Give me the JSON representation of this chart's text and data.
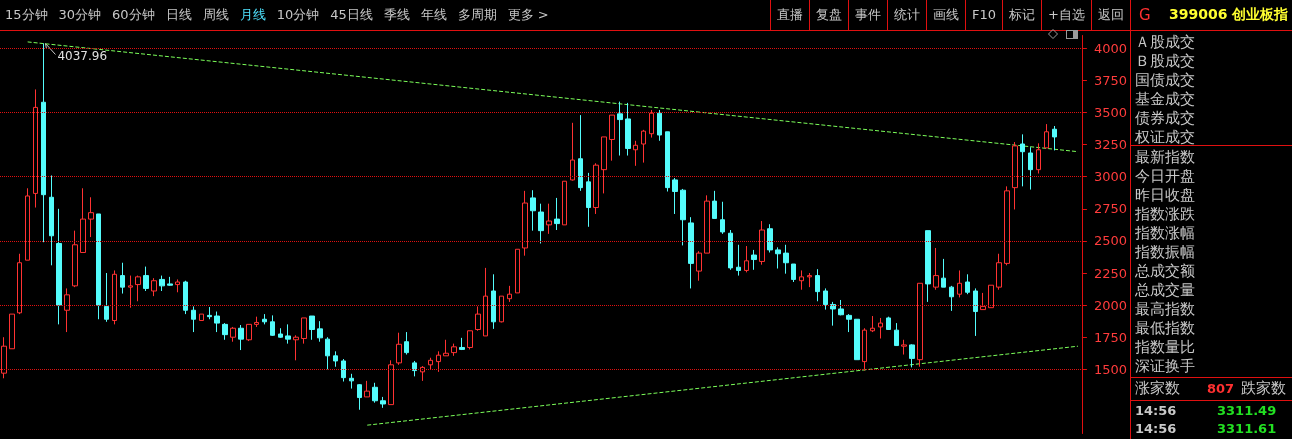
{
  "chart_data": {
    "type": "candlestick",
    "title": "399006 创业板指",
    "categories": [
      null,
      null,
      null,
      null,
      null,
      null,
      null,
      null,
      null,
      null,
      null,
      null,
      null,
      null,
      null,
      null,
      null,
      null,
      null,
      null,
      null,
      null,
      null,
      null,
      null,
      null,
      null,
      null,
      null,
      null,
      null,
      null,
      null,
      null,
      null,
      null,
      null,
      null,
      null,
      null,
      null,
      null,
      null,
      null,
      null,
      null,
      null,
      null,
      null,
      null,
      null,
      null,
      null,
      null,
      null,
      null,
      null,
      null,
      null,
      null,
      null,
      null,
      null,
      null,
      null,
      null,
      null,
      null,
      null,
      null,
      null,
      null,
      null,
      null,
      null,
      null,
      null,
      null,
      null,
      null,
      null,
      null,
      null,
      null,
      null,
      null,
      null,
      null,
      null,
      null,
      null,
      null,
      null,
      null,
      null,
      null,
      null,
      null,
      null,
      null,
      null,
      null,
      null,
      null,
      null,
      null,
      null,
      null,
      null,
      null,
      null,
      null,
      null,
      null,
      null,
      null,
      null,
      null,
      null,
      null,
      null,
      null,
      null,
      null,
      null,
      null,
      null,
      null,
      null,
      null,
      null,
      null,
      null,
      null,
      null,
      null,
      null
    ],
    "ohlc": [
      [
        1470,
        1750,
        1430,
        1680
      ],
      [
        1660,
        1930,
        1660,
        1930
      ],
      [
        1940,
        2400,
        1930,
        2330
      ],
      [
        2350,
        2910,
        2350,
        2850
      ],
      [
        2870,
        3680,
        2760,
        3540
      ],
      [
        3580,
        4037.96,
        2490,
        2860
      ],
      [
        2840,
        3010,
        2310,
        2540
      ],
      [
        2480,
        2750,
        1850,
        2000
      ],
      [
        1960,
        2130,
        1790,
        2080
      ],
      [
        2150,
        2580,
        2140,
        2470
      ],
      [
        2410,
        2910,
        2410,
        2670
      ],
      [
        2670,
        2840,
        2530,
        2720
      ],
      [
        2710,
        2710,
        1890,
        2000
      ],
      [
        1990,
        2250,
        1870,
        1890
      ],
      [
        1880,
        2270,
        1850,
        2240
      ],
      [
        2230,
        2330,
        2090,
        2140
      ],
      [
        2140,
        2230,
        1980,
        2150
      ],
      [
        2160,
        2230,
        2030,
        2220
      ],
      [
        2230,
        2300,
        2110,
        2130
      ],
      [
        2110,
        2210,
        2070,
        2190
      ],
      [
        2200,
        2230,
        2110,
        2150
      ],
      [
        2165,
        2220,
        2150,
        2155
      ],
      [
        2160,
        2200,
        2100,
        2180
      ],
      [
        2180,
        2190,
        1930,
        1960
      ],
      [
        1960,
        1990,
        1790,
        1890
      ],
      [
        1880,
        1930,
        1880,
        1930
      ],
      [
        1920,
        1985,
        1890,
        1910
      ],
      [
        1915,
        1950,
        1790,
        1860
      ],
      [
        1850,
        1860,
        1730,
        1770
      ],
      [
        1750,
        1830,
        1715,
        1820
      ],
      [
        1820,
        1845,
        1650,
        1735
      ],
      [
        1730,
        1850,
        1720,
        1850
      ],
      [
        1850,
        1910,
        1830,
        1865
      ],
      [
        1890,
        1930,
        1850,
        1870
      ],
      [
        1870,
        1920,
        1760,
        1765
      ],
      [
        1775,
        1820,
        1745,
        1750
      ],
      [
        1760,
        1850,
        1700,
        1735
      ],
      [
        1730,
        1765,
        1570,
        1750
      ],
      [
        1740,
        1900,
        1700,
        1900
      ],
      [
        1915,
        1915,
        1730,
        1810
      ],
      [
        1815,
        1875,
        1715,
        1745
      ],
      [
        1735,
        1750,
        1500,
        1605
      ],
      [
        1605,
        1640,
        1520,
        1565
      ],
      [
        1565,
        1580,
        1405,
        1435
      ],
      [
        1430,
        1465,
        1350,
        1410
      ],
      [
        1380,
        1385,
        1185,
        1280
      ],
      [
        1285,
        1410,
        1285,
        1330
      ],
      [
        1360,
        1395,
        1240,
        1255
      ],
      [
        1255,
        1285,
        1200,
        1230
      ],
      [
        1225,
        1570,
        1225,
        1535
      ],
      [
        1550,
        1785,
        1535,
        1695
      ],
      [
        1715,
        1790,
        1615,
        1630
      ],
      [
        1550,
        1565,
        1445,
        1490
      ],
      [
        1480,
        1525,
        1410,
        1515
      ],
      [
        1535,
        1590,
        1495,
        1570
      ],
      [
        1560,
        1640,
        1480,
        1610
      ],
      [
        1605,
        1730,
        1605,
        1625
      ],
      [
        1630,
        1700,
        1605,
        1675
      ],
      [
        1670,
        1745,
        1650,
        1655
      ],
      [
        1670,
        1800,
        1655,
        1800
      ],
      [
        1810,
        1990,
        1800,
        1930
      ],
      [
        1760,
        2290,
        1760,
        2070
      ],
      [
        2110,
        2240,
        1815,
        1870
      ],
      [
        1870,
        2070,
        1865,
        2070
      ],
      [
        2050,
        2150,
        2025,
        2085
      ],
      [
        2095,
        2435,
        2095,
        2435
      ],
      [
        2445,
        2890,
        2385,
        2795
      ],
      [
        2835,
        2895,
        2580,
        2735
      ],
      [
        2725,
        2790,
        2480,
        2580
      ],
      [
        2625,
        2790,
        2555,
        2655
      ],
      [
        2670,
        2835,
        2585,
        2635
      ],
      [
        2625,
        2965,
        2625,
        2965
      ],
      [
        2975,
        3420,
        2970,
        3130
      ],
      [
        3140,
        3480,
        2890,
        2915
      ],
      [
        2960,
        3030,
        2610,
        2760
      ],
      [
        2760,
        3105,
        2710,
        3090
      ],
      [
        3055,
        3310,
        2870,
        3310
      ],
      [
        3290,
        3480,
        3125,
        3480
      ],
      [
        3490,
        3585,
        3165,
        3445
      ],
      [
        3450,
        3575,
        3165,
        3220
      ],
      [
        3210,
        3280,
        3085,
        3245
      ],
      [
        3255,
        3365,
        3110,
        3355
      ],
      [
        3335,
        3520,
        3305,
        3495
      ],
      [
        3495,
        3520,
        3280,
        3325
      ],
      [
        3350,
        3350,
        2885,
        2915
      ],
      [
        2975,
        2990,
        2710,
        2885
      ],
      [
        2895,
        2905,
        2465,
        2665
      ],
      [
        2640,
        2685,
        2130,
        2325
      ],
      [
        2265,
        2420,
        2190,
        2405
      ],
      [
        2405,
        2855,
        2405,
        2810
      ],
      [
        2810,
        2890,
        2675,
        2675
      ],
      [
        2665,
        2805,
        2555,
        2570
      ],
      [
        2560,
        2585,
        2275,
        2290
      ],
      [
        2295,
        2470,
        2230,
        2270
      ],
      [
        2270,
        2460,
        2255,
        2345
      ],
      [
        2390,
        2430,
        2275,
        2355
      ],
      [
        2340,
        2655,
        2315,
        2585
      ],
      [
        2595,
        2630,
        2410,
        2430
      ],
      [
        2430,
        2450,
        2285,
        2400
      ],
      [
        2405,
        2470,
        2245,
        2330
      ],
      [
        2320,
        2320,
        2180,
        2200
      ],
      [
        2190,
        2270,
        2120,
        2220
      ],
      [
        2220,
        2250,
        2140,
        2230
      ],
      [
        2230,
        2280,
        2030,
        2105
      ],
      [
        2110,
        2130,
        1965,
        2005
      ],
      [
        2005,
        2025,
        1840,
        1970
      ],
      [
        1970,
        2040,
        1920,
        1925
      ],
      [
        1920,
        1930,
        1790,
        1890
      ],
      [
        1890,
        1890,
        1575,
        1575
      ],
      [
        1560,
        1820,
        1490,
        1805
      ],
      [
        1800,
        1915,
        1790,
        1820
      ],
      [
        1830,
        1900,
        1740,
        1860
      ],
      [
        1900,
        1910,
        1810,
        1810
      ],
      [
        1805,
        1860,
        1685,
        1685
      ],
      [
        1680,
        1730,
        1615,
        1690
      ],
      [
        1690,
        1695,
        1515,
        1585
      ],
      [
        1575,
        2170,
        1520,
        2170
      ],
      [
        2580,
        2580,
        2025,
        2165
      ],
      [
        2140,
        2445,
        2120,
        2230
      ],
      [
        2210,
        2360,
        2140,
        2140
      ],
      [
        2140,
        2150,
        1955,
        2065
      ],
      [
        2085,
        2270,
        2060,
        2170
      ],
      [
        2180,
        2240,
        2085,
        2100
      ],
      [
        2110,
        2130,
        1760,
        1950
      ],
      [
        1965,
        2095,
        1965,
        1990
      ],
      [
        1980,
        2155,
        1980,
        2155
      ],
      [
        2140,
        2400,
        2120,
        2330
      ],
      [
        2325,
        2925,
        2310,
        2890
      ],
      [
        2915,
        3270,
        2745,
        3240
      ],
      [
        3255,
        3330,
        2925,
        3195
      ],
      [
        3185,
        3230,
        2900,
        3055
      ],
      [
        3055,
        3260,
        3025,
        3210
      ],
      [
        3225,
        3410,
        3225,
        3350
      ],
      [
        3370,
        3395,
        3205,
        3310
      ],
      null,
      null,
      null
    ],
    "colors": [
      "#ff3232",
      "#ff3232",
      "#ff3232",
      "#ff3232",
      "#ff3232",
      "#54fcfc",
      "#54fcfc",
      "#54fcfc",
      "#ff3232",
      "#ff3232",
      "#ff3232",
      "#ff3232",
      "#54fcfc",
      "#54fcfc",
      "#ff3232",
      "#54fcfc",
      "#ff3232",
      "#ff3232",
      "#54fcfc",
      "#ff3232",
      "#54fcfc",
      "#54fcfc",
      "#ff3232",
      "#54fcfc",
      "#54fcfc",
      "#ff3232",
      "#54fcfc",
      "#54fcfc",
      "#54fcfc",
      "#ff3232",
      "#54fcfc",
      "#ff3232",
      "#ff3232",
      "#54fcfc",
      "#54fcfc",
      "#54fcfc",
      "#54fcfc",
      "#ff3232",
      "#ff3232",
      "#54fcfc",
      "#54fcfc",
      "#54fcfc",
      "#54fcfc",
      "#54fcfc",
      "#54fcfc",
      "#54fcfc",
      "#ff3232",
      "#54fcfc",
      "#54fcfc",
      "#ff3232",
      "#ff3232",
      "#54fcfc",
      "#54fcfc",
      "#ff3232",
      "#ff3232",
      "#ff3232",
      "#ff3232",
      "#ff3232",
      "#54fcfc",
      "#ff3232",
      "#ff3232",
      "#ff3232",
      "#54fcfc",
      "#ff3232",
      "#ff3232",
      "#ff3232",
      "#ff3232",
      "#54fcfc",
      "#54fcfc",
      "#ff3232",
      "#54fcfc",
      "#ff3232",
      "#ff3232",
      "#54fcfc",
      "#54fcfc",
      "#ff3232",
      "#ff3232",
      "#ff3232",
      "#54fcfc",
      "#54fcfc",
      "#ff3232",
      "#ff3232",
      "#ff3232",
      "#54fcfc",
      "#54fcfc",
      "#54fcfc",
      "#54fcfc",
      "#54fcfc",
      "#ff3232",
      "#ff3232",
      "#54fcfc",
      "#54fcfc",
      "#54fcfc",
      "#54fcfc",
      "#ff3232",
      "#54fcfc",
      "#ff3232",
      "#54fcfc",
      "#54fcfc",
      "#54fcfc",
      "#54fcfc",
      "#ff3232",
      "#ff3232",
      "#54fcfc",
      "#54fcfc",
      "#54fcfc",
      "#54fcfc",
      "#54fcfc",
      "#54fcfc",
      "#ff3232",
      "#ff3232",
      "#ff3232",
      "#54fcfc",
      "#54fcfc",
      "#ff3232",
      "#54fcfc",
      "#ff3232",
      "#54fcfc",
      "#ff3232",
      "#54fcfc",
      "#54fcfc",
      "#ff3232",
      "#54fcfc",
      "#54fcfc",
      "#ff3232",
      "#ff3232",
      "#ff3232",
      "#ff3232",
      "#ff3232",
      "#54fcfc",
      "#54fcfc",
      "#ff3232",
      "#ff3232",
      "#54fcfc",
      null,
      null,
      null
    ],
    "series": [
      {
        "type": "line",
        "color": "#7cff5a",
        "values": [
          null,
          null,
          null,
          4050,
          null,
          null,
          null,
          null,
          null,
          null,
          null,
          null,
          null,
          null,
          null,
          null,
          null,
          null,
          null,
          null,
          null,
          null,
          null,
          null,
          null,
          null,
          null,
          null,
          null,
          null,
          null,
          null,
          null,
          null,
          null,
          null,
          null,
          null,
          null,
          null,
          null,
          null,
          null,
          null,
          null,
          null,
          null,
          null,
          null,
          null,
          null,
          null,
          null,
          null,
          null,
          null,
          null,
          null,
          null,
          null,
          null,
          null,
          null,
          null,
          null,
          null,
          null,
          null,
          null,
          null,
          null,
          null,
          null,
          null,
          null,
          null,
          null,
          null,
          null,
          null,
          null,
          null,
          null,
          null,
          null,
          null,
          null,
          null,
          null,
          null,
          null,
          null,
          null,
          null,
          null,
          null,
          null,
          null,
          null,
          null,
          null,
          null,
          null,
          null,
          null,
          null,
          null,
          null,
          null,
          null,
          null,
          null,
          null,
          null,
          null,
          null,
          null,
          null,
          null,
          null,
          null,
          null,
          null,
          null,
          null,
          null,
          null,
          null,
          null,
          null,
          null,
          null,
          null,
          null,
          null,
          null,
          3195
        ]
      },
      {
        "type": "line",
        "color": "#7cff5a",
        "values": [
          null,
          null,
          null,
          null,
          null,
          null,
          null,
          null,
          null,
          null,
          null,
          null,
          null,
          null,
          null,
          null,
          null,
          null,
          null,
          null,
          null,
          null,
          null,
          null,
          null,
          null,
          null,
          null,
          null,
          null,
          null,
          null,
          null,
          null,
          null,
          null,
          null,
          null,
          null,
          null,
          null,
          null,
          null,
          null,
          null,
          null,
          1065,
          null,
          null,
          null,
          null,
          null,
          null,
          null,
          null,
          null,
          null,
          null,
          null,
          null,
          null,
          null,
          null,
          null,
          null,
          null,
          null,
          null,
          null,
          null,
          null,
          null,
          null,
          null,
          null,
          null,
          null,
          null,
          null,
          null,
          null,
          null,
          null,
          null,
          null,
          null,
          null,
          null,
          null,
          null,
          null,
          null,
          null,
          null,
          null,
          null,
          null,
          null,
          null,
          null,
          null,
          null,
          null,
          null,
          null,
          null,
          null,
          null,
          null,
          null,
          null,
          null,
          null,
          null,
          null,
          null,
          null,
          null,
          null,
          null,
          null,
          null,
          null,
          null,
          null,
          null,
          null,
          null,
          null,
          null,
          null,
          null,
          null,
          null,
          null,
          null,
          1680
        ]
      }
    ],
    "line_style": "dashed",
    "marker": "none",
    "ylim": [
      1000,
      4100
    ],
    "yticks": [
      1500,
      1750,
      2000,
      2250,
      2500,
      2750,
      3000,
      3250,
      3500,
      3750,
      4000
    ],
    "grid": true,
    "tick_labels": "y",
    "annotations": [
      {
        "text": "4037.96",
        "y": 4037.96
      },
      "15分钟",
      "30分钟",
      "60分钟",
      "日线",
      "周线",
      "月线",
      "10分钟",
      "45日线",
      "季线",
      "年线",
      "多周期",
      "更多 >",
      "直播",
      "复盘",
      "事件",
      "统计",
      "画线",
      "F10",
      "标记",
      "+自选",
      "返回",
      "G",
      "Ａ股成交",
      "Ｂ股成交",
      "国债成交",
      "基金成交",
      "债券成交",
      "权证成交",
      "最新指数",
      "今日开盘",
      "昨日收盘",
      "指数涨跌",
      "指数涨幅",
      "指数振幅",
      "总成交额",
      "总成交量",
      "最高指数",
      "最低指数",
      "指数量比",
      "深证换手",
      "涨家数",
      "807",
      "跌家数",
      "14:56",
      "3311.49",
      "14:56",
      "3311.61"
    ]
  }
}
